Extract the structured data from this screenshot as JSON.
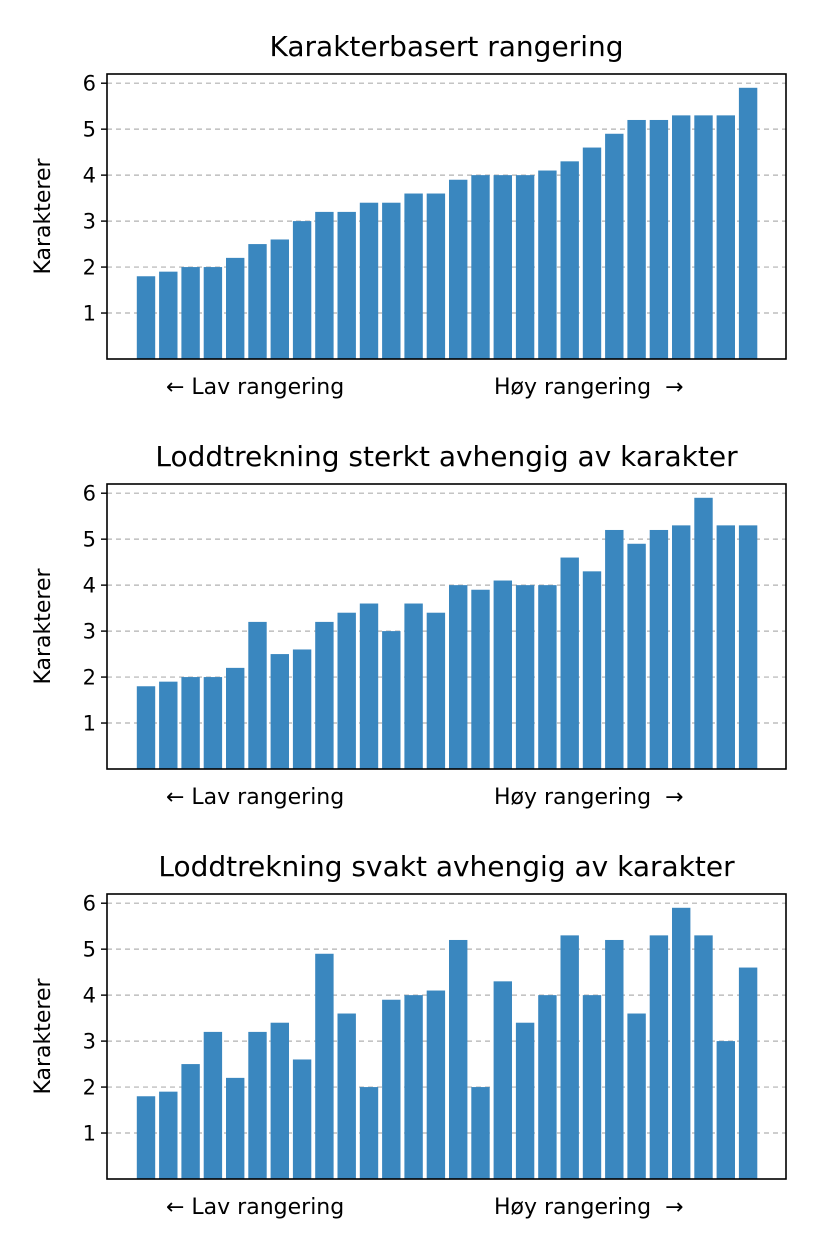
{
  "colors": {
    "bar": "#3a87bf",
    "grid": "#b0b0b0",
    "axis": "#000000"
  },
  "chart_data": [
    {
      "type": "bar",
      "title": "Karakterbasert rangering",
      "ylabel": "Karakterer",
      "xlabel_left": "← Lav rangering",
      "xlabel_right": "Høy rangering  →",
      "ylim": [
        0,
        6.2
      ],
      "yticks": [
        1,
        2,
        3,
        4,
        5,
        6
      ],
      "grid": "y, dashed",
      "values": [
        1.8,
        1.9,
        2.0,
        2.0,
        2.2,
        2.5,
        2.6,
        3.0,
        3.2,
        3.2,
        3.4,
        3.4,
        3.6,
        3.6,
        3.9,
        4.0,
        4.0,
        4.0,
        4.1,
        4.3,
        4.6,
        4.9,
        5.2,
        5.2,
        5.3,
        5.3,
        5.3,
        5.9
      ]
    },
    {
      "type": "bar",
      "title": "Loddtrekning sterkt avhengig av karakter",
      "ylabel": "Karakterer",
      "xlabel_left": "← Lav rangering",
      "xlabel_right": "Høy rangering  →",
      "ylim": [
        0,
        6.2
      ],
      "yticks": [
        1,
        2,
        3,
        4,
        5,
        6
      ],
      "grid": "y, dashed",
      "values": [
        1.8,
        1.9,
        2.0,
        2.0,
        2.2,
        3.2,
        2.5,
        2.6,
        3.2,
        3.4,
        3.6,
        3.0,
        3.6,
        3.4,
        4.0,
        3.9,
        4.1,
        4.0,
        4.0,
        4.6,
        4.3,
        5.2,
        4.9,
        5.2,
        5.3,
        5.9,
        5.3,
        5.3
      ]
    },
    {
      "type": "bar",
      "title": "Loddtrekning svakt avhengig av karakter",
      "ylabel": "Karakterer",
      "xlabel_left": "← Lav rangering",
      "xlabel_right": "Høy rangering  →",
      "ylim": [
        0,
        6.2
      ],
      "yticks": [
        1,
        2,
        3,
        4,
        5,
        6
      ],
      "grid": "y, dashed",
      "values": [
        1.8,
        1.9,
        2.5,
        3.2,
        2.2,
        3.2,
        3.4,
        2.6,
        4.9,
        3.6,
        2.0,
        3.9,
        4.0,
        4.1,
        5.2,
        2.0,
        4.3,
        3.4,
        4.0,
        5.3,
        4.0,
        5.2,
        3.6,
        5.3,
        5.9,
        5.3,
        3.0,
        4.6
      ]
    }
  ]
}
